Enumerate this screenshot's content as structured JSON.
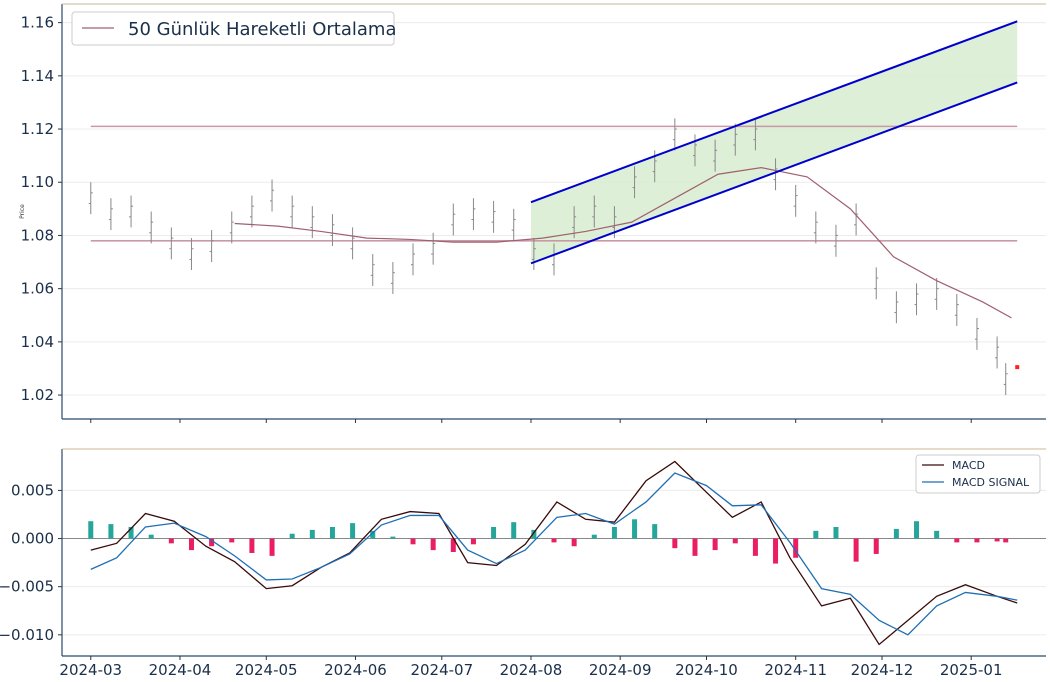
{
  "chart_data": [
    {
      "type": "line",
      "ylabel": "Price",
      "ylim": [
        1.011,
        1.167
      ],
      "xlim": [
        "2024-02-20",
        "2025-01-27"
      ],
      "grid": "horizontal",
      "legend_position": "top-left",
      "y_ticks": [
        1.02,
        1.04,
        1.06,
        1.08,
        1.1,
        1.12,
        1.14,
        1.16
      ],
      "y_tick_labels": [
        "1.02",
        "1.04",
        "1.06",
        "1.08",
        "1.10",
        "1.12",
        "1.14",
        "1.16"
      ],
      "series": [
        {
          "name": "50 Günlük Hareketli Ortalama",
          "color": "#a06070",
          "x": [
            "2024-04-20",
            "2024-05-05",
            "2024-05-20",
            "2024-06-05",
            "2024-06-20",
            "2024-07-05",
            "2024-07-20",
            "2024-08-05",
            "2024-08-20",
            "2024-09-05",
            "2024-09-20",
            "2024-10-05",
            "2024-10-20",
            "2024-11-05",
            "2024-11-20",
            "2024-12-05",
            "2024-12-20",
            "2025-01-05",
            "2025-01-15"
          ],
          "values": [
            1.0845,
            1.0835,
            1.0815,
            1.079,
            1.0785,
            1.0775,
            1.0775,
            1.079,
            1.0815,
            1.085,
            1.094,
            1.103,
            1.1055,
            1.102,
            1.09,
            1.072,
            1.063,
            1.055,
            1.049
          ]
        },
        {
          "name": "OHLC bars",
          "color": "#888888",
          "x": [
            "2024-03-01",
            "2024-03-08",
            "2024-03-15",
            "2024-03-22",
            "2024-03-29",
            "2024-04-05",
            "2024-04-12",
            "2024-04-19",
            "2024-04-26",
            "2024-05-03",
            "2024-05-10",
            "2024-05-17",
            "2024-05-24",
            "2024-05-31",
            "2024-06-07",
            "2024-06-14",
            "2024-06-21",
            "2024-06-28",
            "2024-07-05",
            "2024-07-12",
            "2024-07-19",
            "2024-07-26",
            "2024-08-02",
            "2024-08-09",
            "2024-08-16",
            "2024-08-23",
            "2024-08-30",
            "2024-09-06",
            "2024-09-13",
            "2024-09-20",
            "2024-09-27",
            "2024-10-04",
            "2024-10-11",
            "2024-10-18",
            "2024-10-25",
            "2024-11-01",
            "2024-11-08",
            "2024-11-15",
            "2024-11-22",
            "2024-11-29",
            "2024-12-06",
            "2024-12-13",
            "2024-12-20",
            "2024-12-27",
            "2025-01-03",
            "2025-01-10",
            "2025-01-13"
          ],
          "values": [
            1.094,
            1.088,
            1.089,
            1.083,
            1.077,
            1.073,
            1.076,
            1.083,
            1.089,
            1.095,
            1.089,
            1.085,
            1.082,
            1.077,
            1.067,
            1.064,
            1.071,
            1.075,
            1.086,
            1.088,
            1.087,
            1.084,
            1.073,
            1.071,
            1.085,
            1.089,
            1.085,
            1.1,
            1.106,
            1.118,
            1.112,
            1.11,
            1.116,
            1.118,
            1.103,
            1.093,
            1.083,
            1.078,
            1.086,
            1.062,
            1.053,
            1.056,
            1.058,
            1.052,
            1.043,
            1.036,
            1.026
          ]
        }
      ],
      "reference_lines": [
        1.121,
        1.078
      ],
      "channel": {
        "upper": {
          "x": [
            "2024-08-01",
            "2025-01-17"
          ],
          "y": [
            1.0925,
            1.1605
          ]
        },
        "lower": {
          "x": [
            "2024-08-01",
            "2025-01-17"
          ],
          "y": [
            1.0695,
            1.1375
          ]
        },
        "color": "#0000cc",
        "fill": "#d8ecd0"
      },
      "last_marker": {
        "x": "2025-01-17",
        "y": 1.0305,
        "color": "#ff2020"
      }
    },
    {
      "type": "bar",
      "ylim": [
        -0.0122,
        0.0093
      ],
      "grid": "horizontal",
      "legend_position": "top-right",
      "y_ticks": [
        0.005,
        0.0,
        -0.005,
        -0.01
      ],
      "y_tick_labels": [
        "0.005",
        "0.000",
        "−0.005",
        "−0.010"
      ],
      "x_ticks": [
        "2024-03-01",
        "2024-04-01",
        "2024-05-01",
        "2024-06-01",
        "2024-07-01",
        "2024-08-01",
        "2024-09-01",
        "2024-10-01",
        "2024-11-01",
        "2024-12-01",
        "2025-01-01"
      ],
      "x_tick_labels": [
        "2024-03",
        "2024-04",
        "2024-05",
        "2024-06",
        "2024-07",
        "2024-08",
        "2024-09",
        "2024-10",
        "2024-11",
        "2024-12",
        "2025-01"
      ],
      "histogram": {
        "x": [
          "2024-03-01",
          "2024-03-08",
          "2024-03-15",
          "2024-03-22",
          "2024-03-29",
          "2024-04-05",
          "2024-04-12",
          "2024-04-19",
          "2024-04-26",
          "2024-05-03",
          "2024-05-10",
          "2024-05-17",
          "2024-05-24",
          "2024-05-31",
          "2024-06-07",
          "2024-06-14",
          "2024-06-21",
          "2024-06-28",
          "2024-07-05",
          "2024-07-12",
          "2024-07-19",
          "2024-07-26",
          "2024-08-02",
          "2024-08-09",
          "2024-08-16",
          "2024-08-23",
          "2024-08-30",
          "2024-09-06",
          "2024-09-13",
          "2024-09-20",
          "2024-09-27",
          "2024-10-04",
          "2024-10-11",
          "2024-10-18",
          "2024-10-25",
          "2024-11-01",
          "2024-11-08",
          "2024-11-15",
          "2024-11-22",
          "2024-11-29",
          "2024-12-06",
          "2024-12-13",
          "2024-12-20",
          "2024-12-27",
          "2025-01-03",
          "2025-01-10",
          "2025-01-13"
        ],
        "values": [
          0.0018,
          0.0015,
          0.0012,
          0.0004,
          -0.0005,
          -0.0012,
          -0.0008,
          -0.0004,
          -0.0015,
          -0.0018,
          0.0005,
          0.0009,
          0.0012,
          0.0016,
          0.0008,
          0.0002,
          -0.0006,
          -0.0012,
          -0.0014,
          -0.0006,
          0.0012,
          0.0017,
          0.0009,
          -0.0004,
          -0.0008,
          0.0004,
          0.0012,
          0.002,
          0.0015,
          -0.001,
          -0.0018,
          -0.0012,
          -0.0005,
          -0.0018,
          -0.0026,
          -0.002,
          0.0008,
          0.0012,
          -0.0024,
          -0.0016,
          0.001,
          0.0018,
          0.0008,
          -0.0004,
          -0.0004,
          -0.0003,
          -0.0004
        ],
        "positive_color": "#26a69a",
        "negative_color": "#e91e63"
      },
      "series": [
        {
          "name": "MACD",
          "color": "#3a0a0a",
          "x": [
            "2024-03-01",
            "2024-03-10",
            "2024-03-20",
            "2024-03-30",
            "2024-04-10",
            "2024-04-20",
            "2024-05-01",
            "2024-05-10",
            "2024-05-20",
            "2024-05-30",
            "2024-06-10",
            "2024-06-20",
            "2024-06-30",
            "2024-07-10",
            "2024-07-20",
            "2024-07-30",
            "2024-08-10",
            "2024-08-20",
            "2024-08-30",
            "2024-09-10",
            "2024-09-20",
            "2024-10-01",
            "2024-10-10",
            "2024-10-20",
            "2024-10-30",
            "2024-11-10",
            "2024-11-20",
            "2024-11-30",
            "2024-12-10",
            "2024-12-20",
            "2024-12-30",
            "2025-01-10",
            "2025-01-17"
          ],
          "values": [
            -0.0012,
            -0.0005,
            0.0026,
            0.0018,
            -0.0008,
            -0.0024,
            -0.0052,
            -0.0049,
            -0.003,
            -0.0015,
            0.002,
            0.0028,
            0.0026,
            -0.0025,
            -0.0028,
            -0.0006,
            0.0038,
            0.002,
            0.0017,
            0.006,
            0.008,
            0.0048,
            0.0022,
            0.0038,
            -0.002,
            -0.007,
            -0.0062,
            -0.011,
            -0.0085,
            -0.006,
            -0.0048,
            -0.006,
            -0.0067
          ]
        },
        {
          "name": "MACD SIGNAL",
          "color": "#1f6fb4",
          "x": [
            "2024-03-01",
            "2024-03-10",
            "2024-03-20",
            "2024-03-30",
            "2024-04-10",
            "2024-04-20",
            "2024-05-01",
            "2024-05-10",
            "2024-05-20",
            "2024-05-30",
            "2024-06-10",
            "2024-06-20",
            "2024-06-30",
            "2024-07-10",
            "2024-07-20",
            "2024-07-30",
            "2024-08-10",
            "2024-08-20",
            "2024-08-30",
            "2024-09-10",
            "2024-09-20",
            "2024-10-01",
            "2024-10-10",
            "2024-10-20",
            "2024-10-30",
            "2024-11-10",
            "2024-11-20",
            "2024-11-30",
            "2024-12-10",
            "2024-12-20",
            "2024-12-30",
            "2025-01-10",
            "2025-01-17"
          ],
          "values": [
            -0.0032,
            -0.002,
            0.0012,
            0.0016,
            0.0002,
            -0.0018,
            -0.0043,
            -0.0042,
            -0.003,
            -0.0016,
            0.0014,
            0.0024,
            0.0024,
            -0.0012,
            -0.0026,
            -0.0012,
            0.0022,
            0.0026,
            0.0015,
            0.0038,
            0.0068,
            0.0055,
            0.0034,
            0.0035,
            -0.0004,
            -0.0052,
            -0.0058,
            -0.0085,
            -0.01,
            -0.007,
            -0.0056,
            -0.006,
            -0.0064
          ]
        }
      ]
    }
  ]
}
